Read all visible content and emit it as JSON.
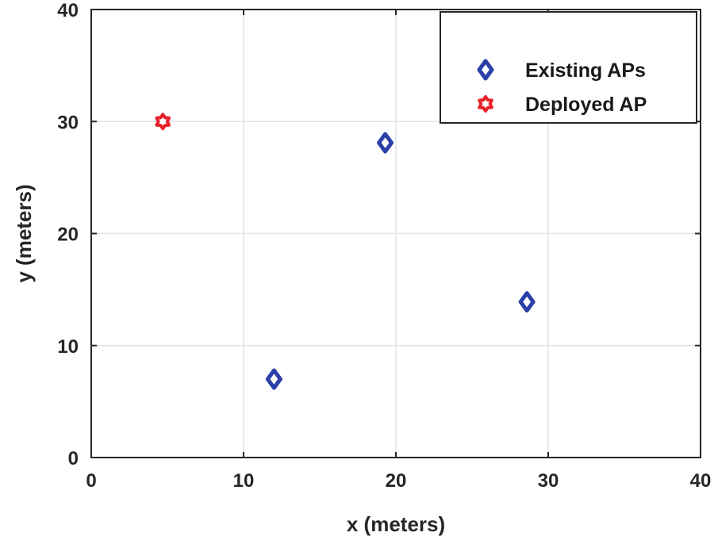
{
  "chart_data": {
    "type": "scatter",
    "title": "",
    "xlabel": "x (meters)",
    "ylabel": "y (meters)",
    "xlim": [
      0,
      40
    ],
    "ylim": [
      0,
      40
    ],
    "xticks": [
      "0",
      "10",
      "20",
      "30",
      "40"
    ],
    "yticks": [
      "0",
      "10",
      "20",
      "30",
      "40"
    ],
    "grid": true,
    "legend_position": "top-right",
    "series": [
      {
        "name": "Existing APs",
        "marker": "diamond",
        "color": "#2b3fa8",
        "points": [
          {
            "x": 12.0,
            "y": 7.0
          },
          {
            "x": 19.3,
            "y": 28.1
          },
          {
            "x": 28.6,
            "y": 13.9
          }
        ]
      },
      {
        "name": "Deployed AP",
        "marker": "hexagram",
        "color": "#e8202a",
        "points": [
          {
            "x": 4.7,
            "y": 30.0
          }
        ]
      }
    ]
  }
}
